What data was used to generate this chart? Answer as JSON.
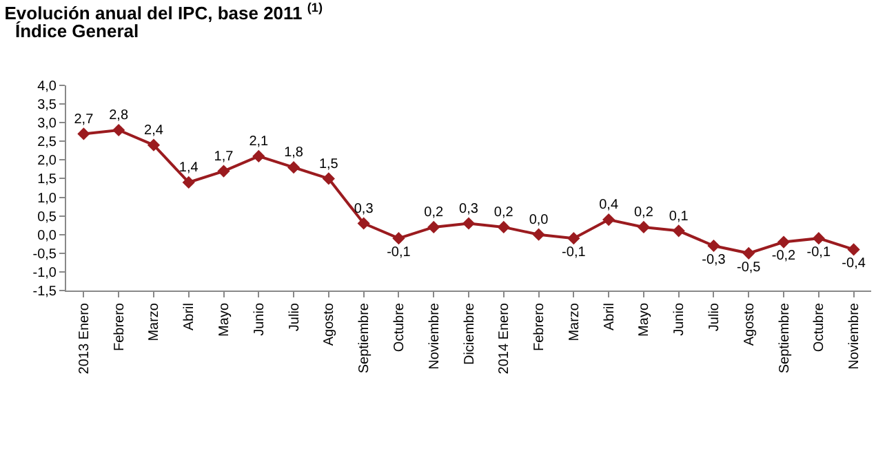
{
  "chart_data": {
    "type": "line",
    "title": "Evolución anual del IPC, base 2011 $^{(1)}$",
    "subtitle": "Índice General",
    "categories": [
      "2013 Enero",
      "Febrero",
      "Marzo",
      "Abril",
      "Mayo",
      "Junio",
      "Julio",
      "Agosto",
      "Septiembre",
      "Octubre",
      "Noviembre",
      "Diciembre",
      "2014 Enero",
      "Febrero",
      "Marzo",
      "Abril",
      "Mayo",
      "Junio",
      "Julio",
      "Agosto",
      "Septiembre",
      "Octubre",
      "Noviembre"
    ],
    "series": [
      {
        "color": "#9b1b1f",
        "values": [
          2.7,
          2.8,
          2.4,
          1.4,
          1.7,
          2.1,
          1.8,
          1.5,
          0.3,
          -0.1,
          0.2,
          0.3,
          0.2,
          0.0,
          -0.1,
          0.4,
          0.2,
          0.1,
          -0.3,
          -0.5,
          -0.2,
          -0.1,
          -0.4
        ],
        "value_labels": [
          "2,7",
          "2,8",
          "2,4",
          "1,4",
          "1,7",
          "2,1",
          "1,8",
          "1,5",
          "0,3",
          "-0,1",
          "0,2",
          "0,3",
          "0,2",
          "0,0",
          "-0,1",
          "0,4",
          "0,2",
          "0,1",
          "-0,3",
          "-0,5",
          "-0,2",
          "-0,1",
          "-0,4"
        ]
      }
    ],
    "ylim": [
      -1.5,
      4.0
    ],
    "yticks": [
      {
        "value": -1.5,
        "label": "-1,5"
      },
      {
        "value": -1.0,
        "label": "-1,0"
      },
      {
        "value": -0.5,
        "label": "-0,5"
      },
      {
        "value": 0,
        "label": "0,0"
      },
      {
        "value": 0.5,
        "label": "0,5"
      },
      {
        "value": 1.0,
        "label": "1,0"
      },
      {
        "value": 1.5,
        "label": "1,5"
      },
      {
        "value": 2.0,
        "label": "2,0"
      },
      {
        "value": 2.5,
        "label": "2,5"
      },
      {
        "value": 3.0,
        "label": "3,0"
      },
      {
        "value": 3.5,
        "label": "3,5"
      },
      {
        "value": 4.0,
        "label": "4,0"
      }
    ],
    "marker": "diamond",
    "line_style": "solid",
    "grid": false,
    "legend": false
  }
}
